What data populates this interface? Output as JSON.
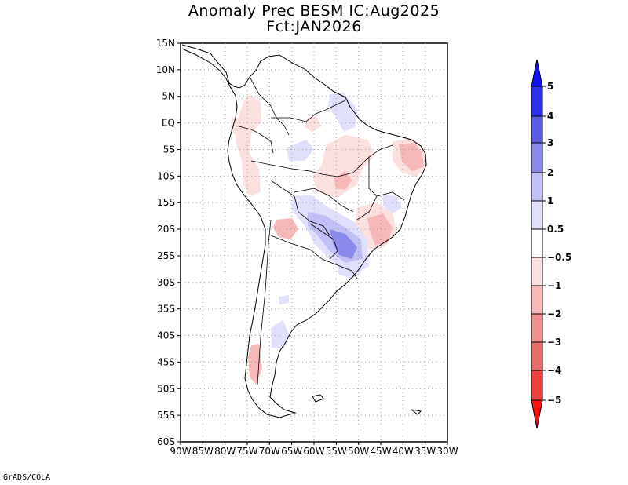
{
  "title": {
    "line1": "Anomaly Prec BESM IC:Aug2025",
    "line2": "Fct:JAN2026"
  },
  "lat_labels": [
    "15N",
    "10N",
    "5N",
    "EQ",
    "5S",
    "10S",
    "15S",
    "20S",
    "25S",
    "30S",
    "35S",
    "40S",
    "45S",
    "50S",
    "55S",
    "60S"
  ],
  "lon_labels": [
    "90W",
    "85W",
    "80W",
    "75W",
    "70W",
    "65W",
    "60W",
    "55W",
    "50W",
    "45W",
    "40W",
    "35W",
    "30W"
  ],
  "colorbar": {
    "labels": [
      "5",
      "4",
      "3",
      "2",
      "1",
      "0.5",
      "−0.5",
      "−1",
      "−2",
      "−3",
      "−4",
      "−5"
    ],
    "colors": {
      "b5": "#1010ff",
      "b4": "#2f2ff0",
      "b3": "#5a5ae6",
      "b2": "#8a8aec",
      "b1": "#c0c0f6",
      "b05": "#e0e0fa",
      "neutral": "#ffffff",
      "r05": "#fbe0e0",
      "r1": "#f6b8b8",
      "r2": "#f09090",
      "r3": "#ec6a6a",
      "r4": "#f04040",
      "r5": "#ff1010"
    }
  },
  "credit": "GrADS/COLA"
}
